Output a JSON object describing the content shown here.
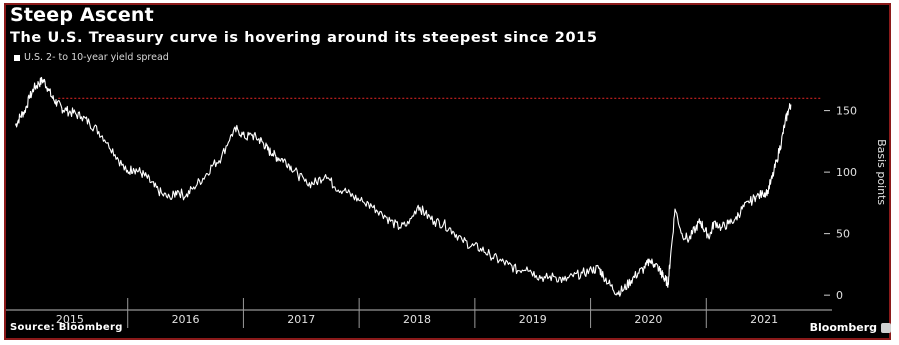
{
  "title": "Steep Ascent",
  "subtitle": "The U.S. Treasury curve is hovering around its steepest since 2015",
  "source": "Source: Bloomberg",
  "brand": "Bloomberg",
  "colors": {
    "background": "#000000",
    "line": "#ffffff",
    "reference_line": "#cc2222",
    "frame": "#8b1a1a"
  },
  "chart_data": {
    "type": "line",
    "title": "Steep Ascent",
    "subtitle": "The U.S. Treasury curve is hovering around its steepest since 2015",
    "ylabel": "Basis points",
    "xlabel": "",
    "ylim": [
      -8,
      183
    ],
    "xlim": [
      2014.55,
      2021.55
    ],
    "y_ticks": [
      0,
      50,
      100,
      150
    ],
    "x_ticks": [
      "2015",
      "2016",
      "2017",
      "2018",
      "2019",
      "2020",
      "2021"
    ],
    "reference_line": {
      "y": 160,
      "style": "dotted",
      "color": "#cc2222"
    },
    "series": [
      {
        "name": "U.S. 2- to 10-year yield spread",
        "x": [
          2014.58,
          2014.62,
          2014.66,
          2014.7,
          2014.74,
          2014.78,
          2014.82,
          2014.86,
          2014.9,
          2014.94,
          2014.98,
          2015.02,
          2015.08,
          2015.15,
          2015.22,
          2015.3,
          2015.38,
          2015.46,
          2015.54,
          2015.6,
          2015.66,
          2015.72,
          2015.78,
          2015.85,
          2015.92,
          2015.98,
          2016.05,
          2016.12,
          2016.2,
          2016.28,
          2016.36,
          2016.44,
          2016.5,
          2016.56,
          2016.62,
          2016.68,
          2016.72,
          2016.76,
          2016.8,
          2016.84,
          2016.9,
          2016.96,
          2017.02,
          2017.1,
          2017.18,
          2017.26,
          2017.34,
          2017.42,
          2017.5,
          2017.58,
          2017.66,
          2017.74,
          2017.82,
          2017.9,
          2017.98,
          2018.06,
          2018.12,
          2018.2,
          2018.28,
          2018.36,
          2018.44,
          2018.52,
          2018.6,
          2018.68,
          2018.76,
          2018.84,
          2018.92,
          2019.0,
          2019.08,
          2019.16,
          2019.24,
          2019.32,
          2019.4,
          2019.48,
          2019.56,
          2019.62,
          2019.66,
          2019.72,
          2019.78,
          2019.84,
          2019.9,
          2019.96,
          2020.02,
          2020.06,
          2020.1,
          2020.14,
          2020.16,
          2020.18,
          2020.2,
          2020.22,
          2020.24,
          2020.28,
          2020.34,
          2020.4,
          2020.46,
          2020.5,
          2020.54,
          2020.58,
          2020.62,
          2020.68,
          2020.74,
          2020.8,
          2020.86,
          2020.92,
          2020.98,
          2021.04,
          2021.08,
          2021.12,
          2021.16,
          2021.2,
          2021.23,
          2021.26,
          2021.28
        ],
        "values": [
          138,
          145,
          150,
          160,
          168,
          172,
          175,
          168,
          160,
          156,
          152,
          150,
          148,
          145,
          140,
          133,
          124,
          112,
          100,
          103,
          100,
          95,
          88,
          82,
          78,
          85,
          80,
          88,
          95,
          105,
          112,
          130,
          135,
          128,
          130,
          127,
          124,
          118,
          115,
          112,
          110,
          105,
          98,
          90,
          92,
          98,
          88,
          85,
          80,
          76,
          72,
          68,
          60,
          55,
          58,
          73,
          66,
          60,
          58,
          52,
          45,
          40,
          38,
          33,
          28,
          25,
          20,
          23,
          16,
          14,
          15,
          12,
          15,
          18,
          20,
          22,
          16,
          8,
          2,
          5,
          12,
          18,
          22,
          28,
          25,
          22,
          18,
          15,
          12,
          10,
          30,
          70,
          50,
          45,
          55,
          60,
          52,
          48,
          60,
          55,
          58,
          62,
          70,
          75,
          80,
          82,
          85,
          95,
          110,
          125,
          140,
          150,
          155
        ]
      }
    ]
  }
}
